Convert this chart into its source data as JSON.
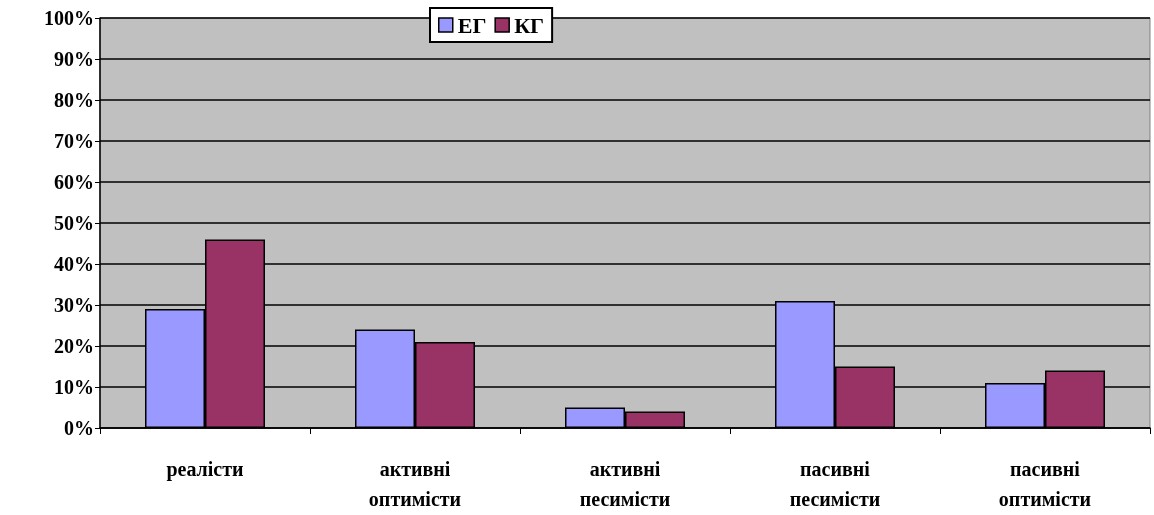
{
  "chart_data": {
    "type": "bar",
    "categories": [
      "реалісти",
      "активні оптимісти",
      "активні песимісти",
      "пасивні песимісти",
      "пасивні оптимісти"
    ],
    "series": [
      {
        "name": "ЕГ",
        "color": "#9999ff",
        "values": [
          29,
          24,
          5,
          31,
          11
        ]
      },
      {
        "name": "КГ",
        "color": "#993366",
        "values": [
          46,
          21,
          4,
          15,
          14
        ]
      }
    ],
    "ylim": [
      0,
      100
    ],
    "yticks": [
      {
        "value": 0,
        "label": "0%"
      },
      {
        "value": 10,
        "label": "10%"
      },
      {
        "value": 20,
        "label": "20%"
      },
      {
        "value": 30,
        "label": "30%"
      },
      {
        "value": 40,
        "label": "40%"
      },
      {
        "value": 50,
        "label": "50%"
      },
      {
        "value": 60,
        "label": "60%"
      },
      {
        "value": 70,
        "label": "70%"
      },
      {
        "value": 80,
        "label": "80%"
      },
      {
        "value": 90,
        "label": "90%"
      },
      {
        "value": 100,
        "label": "100%"
      }
    ],
    "grid": "y",
    "legend": "top"
  }
}
